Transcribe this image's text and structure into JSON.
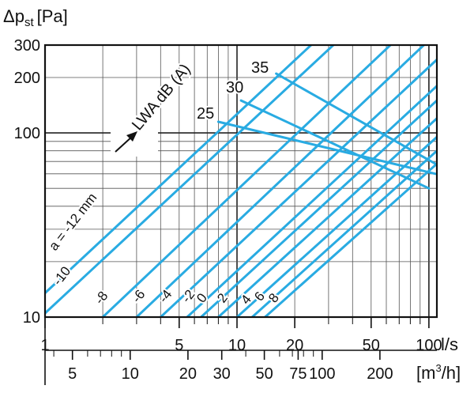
{
  "chart_data": {
    "type": "line",
    "y_label": {
      "main": "Δp",
      "sub": "st",
      "unit": "[Pa]"
    },
    "x_label_top": "l/s",
    "x_label_bottom": {
      "pre": "[m",
      "sup": "3",
      "post": "/h]"
    },
    "x_scale": "log",
    "y_scale": "log",
    "xlim": [
      1,
      110
    ],
    "ylim": [
      10,
      300
    ],
    "y_ticks": [
      {
        "value": 10,
        "label": "10"
      },
      {
        "value": 100,
        "label": "100"
      },
      {
        "value": 200,
        "label": "200"
      },
      {
        "value": 300,
        "label": "300"
      }
    ],
    "x_ticks_top": [
      {
        "value": 1,
        "label": "1"
      },
      {
        "value": 5,
        "label": "5"
      },
      {
        "value": 10,
        "label": "10"
      },
      {
        "value": 20,
        "label": "20"
      },
      {
        "value": 50,
        "label": "50"
      },
      {
        "value": 100,
        "label": "100"
      }
    ],
    "x_ticks_bottom": [
      {
        "value": 5,
        "label": "5"
      },
      {
        "value": 10,
        "label": "10"
      },
      {
        "value": 20,
        "label": "20"
      },
      {
        "value": 30,
        "label": "30"
      },
      {
        "value": 50,
        "label": "50"
      },
      {
        "value": 75,
        "label": "75"
      },
      {
        "value": 100,
        "label": "100"
      },
      {
        "value": 200,
        "label": "200"
      }
    ],
    "grid": true,
    "series_color": "#29abe2",
    "damper_settings": [
      {
        "label": "a = -12 mm",
        "x": [
          1,
          110
        ],
        "y": [
          13.5,
          1300
        ]
      },
      {
        "label": "-10",
        "x": [
          1,
          110
        ],
        "y": [
          10.5,
          1000
        ]
      },
      {
        "label": "-8",
        "x": [
          2,
          110
        ],
        "y": [
          10,
          520
        ]
      },
      {
        "label": "-6",
        "x": [
          3,
          110
        ],
        "y": [
          10,
          350
        ]
      },
      {
        "label": "-4",
        "x": [
          4,
          110
        ],
        "y": [
          10,
          250
        ]
      },
      {
        "label": "-2",
        "x": [
          5.5,
          110
        ],
        "y": [
          10,
          180
        ]
      },
      {
        "label": "0",
        "x": [
          6.5,
          110
        ],
        "y": [
          10,
          150
        ]
      },
      {
        "label": "2",
        "x": [
          8,
          110
        ],
        "y": [
          10,
          120
        ]
      },
      {
        "label": "4",
        "x": [
          10,
          110
        ],
        "y": [
          10,
          95
        ]
      },
      {
        "label": "6",
        "x": [
          12,
          110
        ],
        "y": [
          10,
          80
        ]
      },
      {
        "label": "8",
        "x": [
          14,
          110
        ],
        "y": [
          10,
          68
        ]
      }
    ],
    "sound_levels": [
      {
        "label": "25",
        "x": [
          8,
          108
        ],
        "y": [
          115,
          60
        ]
      },
      {
        "label": "30",
        "x": [
          10.5,
          100
        ],
        "y": [
          150,
          50
        ]
      },
      {
        "label": "35",
        "x": [
          16,
          108
        ],
        "y": [
          210,
          68
        ]
      }
    ],
    "arrow_label": "LWA dB (A)"
  }
}
